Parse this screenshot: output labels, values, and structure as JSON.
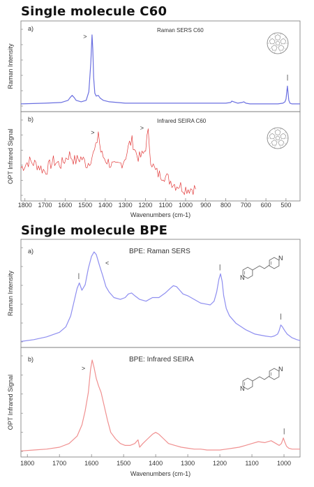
{
  "headings": {
    "c60": "Single molecule C60",
    "bpe": "Single molecule BPE"
  },
  "chart_data": [
    {
      "type": "line",
      "title": "Single molecule C60",
      "xlabel": "Wavenumbers (cm-1)",
      "xlim": [
        1820,
        430
      ],
      "x_ticks": [
        1800,
        1700,
        1600,
        1500,
        1400,
        1300,
        1200,
        1100,
        1000,
        900,
        800,
        700,
        600,
        500
      ],
      "panels": [
        {
          "letter": "a)",
          "annotation": "Raman SERS C60",
          "ylabel": "Raman Intensity",
          "color": "#6a6fe0",
          "markers": [
            {
              "x": 1468,
              "symbol": ">"
            },
            {
              "x": 493,
              "symbol": "|"
            }
          ],
          "series": {
            "name": "",
            "x": [
              1820,
              1700,
              1620,
              1585,
              1575,
              1565,
              1555,
              1545,
              1520,
              1495,
              1482,
              1472,
              1466,
              1462,
              1458,
              1452,
              1445,
              1435,
              1425,
              1410,
              1380,
              1300,
              1200,
              1100,
              1000,
              900,
              800,
              775,
              770,
              760,
              740,
              720,
              710,
              700,
              680,
              600,
              540,
              515,
              505,
              500,
              496,
              493,
              490,
              486,
              480,
              470,
              430
            ],
            "y": [
              0.03,
              0.04,
              0.05,
              0.08,
              0.12,
              0.15,
              0.12,
              0.08,
              0.06,
              0.08,
              0.2,
              0.6,
              1.0,
              0.8,
              0.4,
              0.18,
              0.14,
              0.15,
              0.11,
              0.08,
              0.06,
              0.04,
              0.04,
              0.04,
              0.04,
              0.04,
              0.04,
              0.05,
              0.07,
              0.06,
              0.04,
              0.05,
              0.06,
              0.04,
              0.03,
              0.03,
              0.03,
              0.04,
              0.06,
              0.1,
              0.2,
              0.28,
              0.2,
              0.08,
              0.04,
              0.03,
              0.03
            ]
          }
        },
        {
          "letter": "b)",
          "annotation": "Infrared SEIRA C60",
          "ylabel": "OPT Infrared Signal",
          "color": "#e23a3a",
          "markers": [
            {
              "x": 1430,
              "symbol": ">"
            },
            {
              "x": 1185,
              "symbol": ">"
            }
          ],
          "series": {
            "name": "",
            "x": [
              1820,
              1780,
              1740,
              1700,
              1660,
              1620,
              1580,
              1550,
              1520,
              1490,
              1460,
              1445,
              1435,
              1428,
              1420,
              1405,
              1390,
              1370,
              1350,
              1330,
              1310,
              1295,
              1280,
              1265,
              1255,
              1245,
              1230,
              1210,
              1195,
              1188,
              1182,
              1175,
              1165,
              1150,
              1130,
              1110,
              1090,
              1070,
              1050,
              1030,
              1010,
              990,
              970,
              950
            ],
            "y": [
              0.4,
              0.5,
              0.45,
              0.35,
              0.5,
              0.45,
              0.6,
              0.5,
              0.55,
              0.45,
              0.6,
              0.7,
              0.95,
              0.75,
              0.6,
              0.55,
              0.5,
              0.45,
              0.4,
              0.45,
              0.5,
              0.6,
              0.75,
              0.8,
              0.7,
              0.6,
              0.55,
              0.6,
              0.75,
              0.95,
              0.8,
              0.55,
              0.45,
              0.35,
              0.3,
              0.3,
              0.25,
              0.2,
              0.15,
              0.15,
              0.1,
              0.1,
              0.1,
              0.1
            ]
          }
        }
      ]
    },
    {
      "type": "line",
      "title": "Single molecule BPE",
      "xlabel": "Wavenumbers (cm-1)",
      "xlim": [
        1820,
        950
      ],
      "x_ticks": [
        1800,
        1700,
        1600,
        1500,
        1400,
        1300,
        1200,
        1100,
        1000
      ],
      "panels": [
        {
          "letter": "a)",
          "annotation": "BPE: Raman SERS",
          "ylabel": "Raman Intensity",
          "color": "#8e8ef0",
          "markers": [
            {
              "x": 1640,
              "symbol": "|"
            },
            {
              "x": 1570,
              "symbol": "<"
            },
            {
              "x": 1200,
              "symbol": "|"
            },
            {
              "x": 1010,
              "symbol": "|"
            }
          ],
          "series": {
            "name": "",
            "x": [
              1820,
              1780,
              1740,
              1700,
              1680,
              1665,
              1655,
              1645,
              1638,
              1630,
              1620,
              1610,
              1600,
              1592,
              1585,
              1575,
              1565,
              1555,
              1545,
              1530,
              1510,
              1495,
              1485,
              1475,
              1465,
              1450,
              1430,
              1410,
              1390,
              1370,
              1355,
              1345,
              1335,
              1325,
              1315,
              1300,
              1280,
              1260,
              1245,
              1230,
              1218,
              1210,
              1203,
              1198,
              1193,
              1188,
              1180,
              1170,
              1150,
              1120,
              1090,
              1060,
              1040,
              1030,
              1020,
              1015,
              1010,
              1005,
              998,
              990,
              975,
              960,
              950
            ],
            "y": [
              0.02,
              0.04,
              0.07,
              0.12,
              0.18,
              0.3,
              0.45,
              0.6,
              0.66,
              0.58,
              0.64,
              0.82,
              0.95,
              1.0,
              0.97,
              0.85,
              0.74,
              0.62,
              0.56,
              0.5,
              0.48,
              0.5,
              0.54,
              0.55,
              0.52,
              0.48,
              0.46,
              0.5,
              0.5,
              0.55,
              0.6,
              0.63,
              0.62,
              0.58,
              0.54,
              0.52,
              0.48,
              0.44,
              0.43,
              0.42,
              0.46,
              0.56,
              0.7,
              0.76,
              0.68,
              0.52,
              0.38,
              0.3,
              0.22,
              0.15,
              0.1,
              0.08,
              0.07,
              0.08,
              0.1,
              0.14,
              0.2,
              0.18,
              0.14,
              0.1,
              0.06,
              0.04,
              0.03
            ]
          }
        },
        {
          "letter": "b)",
          "annotation": "BPE: Infrared SEIRA",
          "ylabel": "OPT Infrared Signal",
          "color": "#f09090",
          "markers": [
            {
              "x": 1605,
              "symbol": ">"
            },
            {
              "x": 1000,
              "symbol": "|"
            }
          ],
          "series": {
            "name": "",
            "x": [
              1820,
              1780,
              1740,
              1700,
              1670,
              1645,
              1630,
              1620,
              1610,
              1603,
              1598,
              1592,
              1585,
              1578,
              1570,
              1560,
              1550,
              1540,
              1525,
              1510,
              1495,
              1480,
              1465,
              1455,
              1450,
              1440,
              1425,
              1410,
              1400,
              1390,
              1375,
              1360,
              1340,
              1320,
              1300,
              1280,
              1260,
              1240,
              1220,
              1200,
              1180,
              1160,
              1140,
              1120,
              1100,
              1080,
              1060,
              1040,
              1025,
              1015,
              1008,
              1002,
              998,
              992,
              985,
              975,
              960,
              950
            ],
            "y": [
              0.02,
              0.03,
              0.04,
              0.06,
              0.1,
              0.18,
              0.3,
              0.45,
              0.65,
              0.9,
              1.0,
              0.92,
              0.8,
              0.72,
              0.65,
              0.5,
              0.35,
              0.22,
              0.15,
              0.1,
              0.08,
              0.08,
              0.1,
              0.14,
              0.06,
              0.1,
              0.15,
              0.2,
              0.22,
              0.2,
              0.15,
              0.1,
              0.08,
              0.06,
              0.05,
              0.04,
              0.04,
              0.03,
              0.03,
              0.03,
              0.04,
              0.05,
              0.06,
              0.08,
              0.1,
              0.12,
              0.11,
              0.13,
              0.1,
              0.08,
              0.1,
              0.16,
              0.12,
              0.07,
              0.05,
              0.04,
              0.04,
              0.04
            ]
          }
        }
      ]
    }
  ]
}
